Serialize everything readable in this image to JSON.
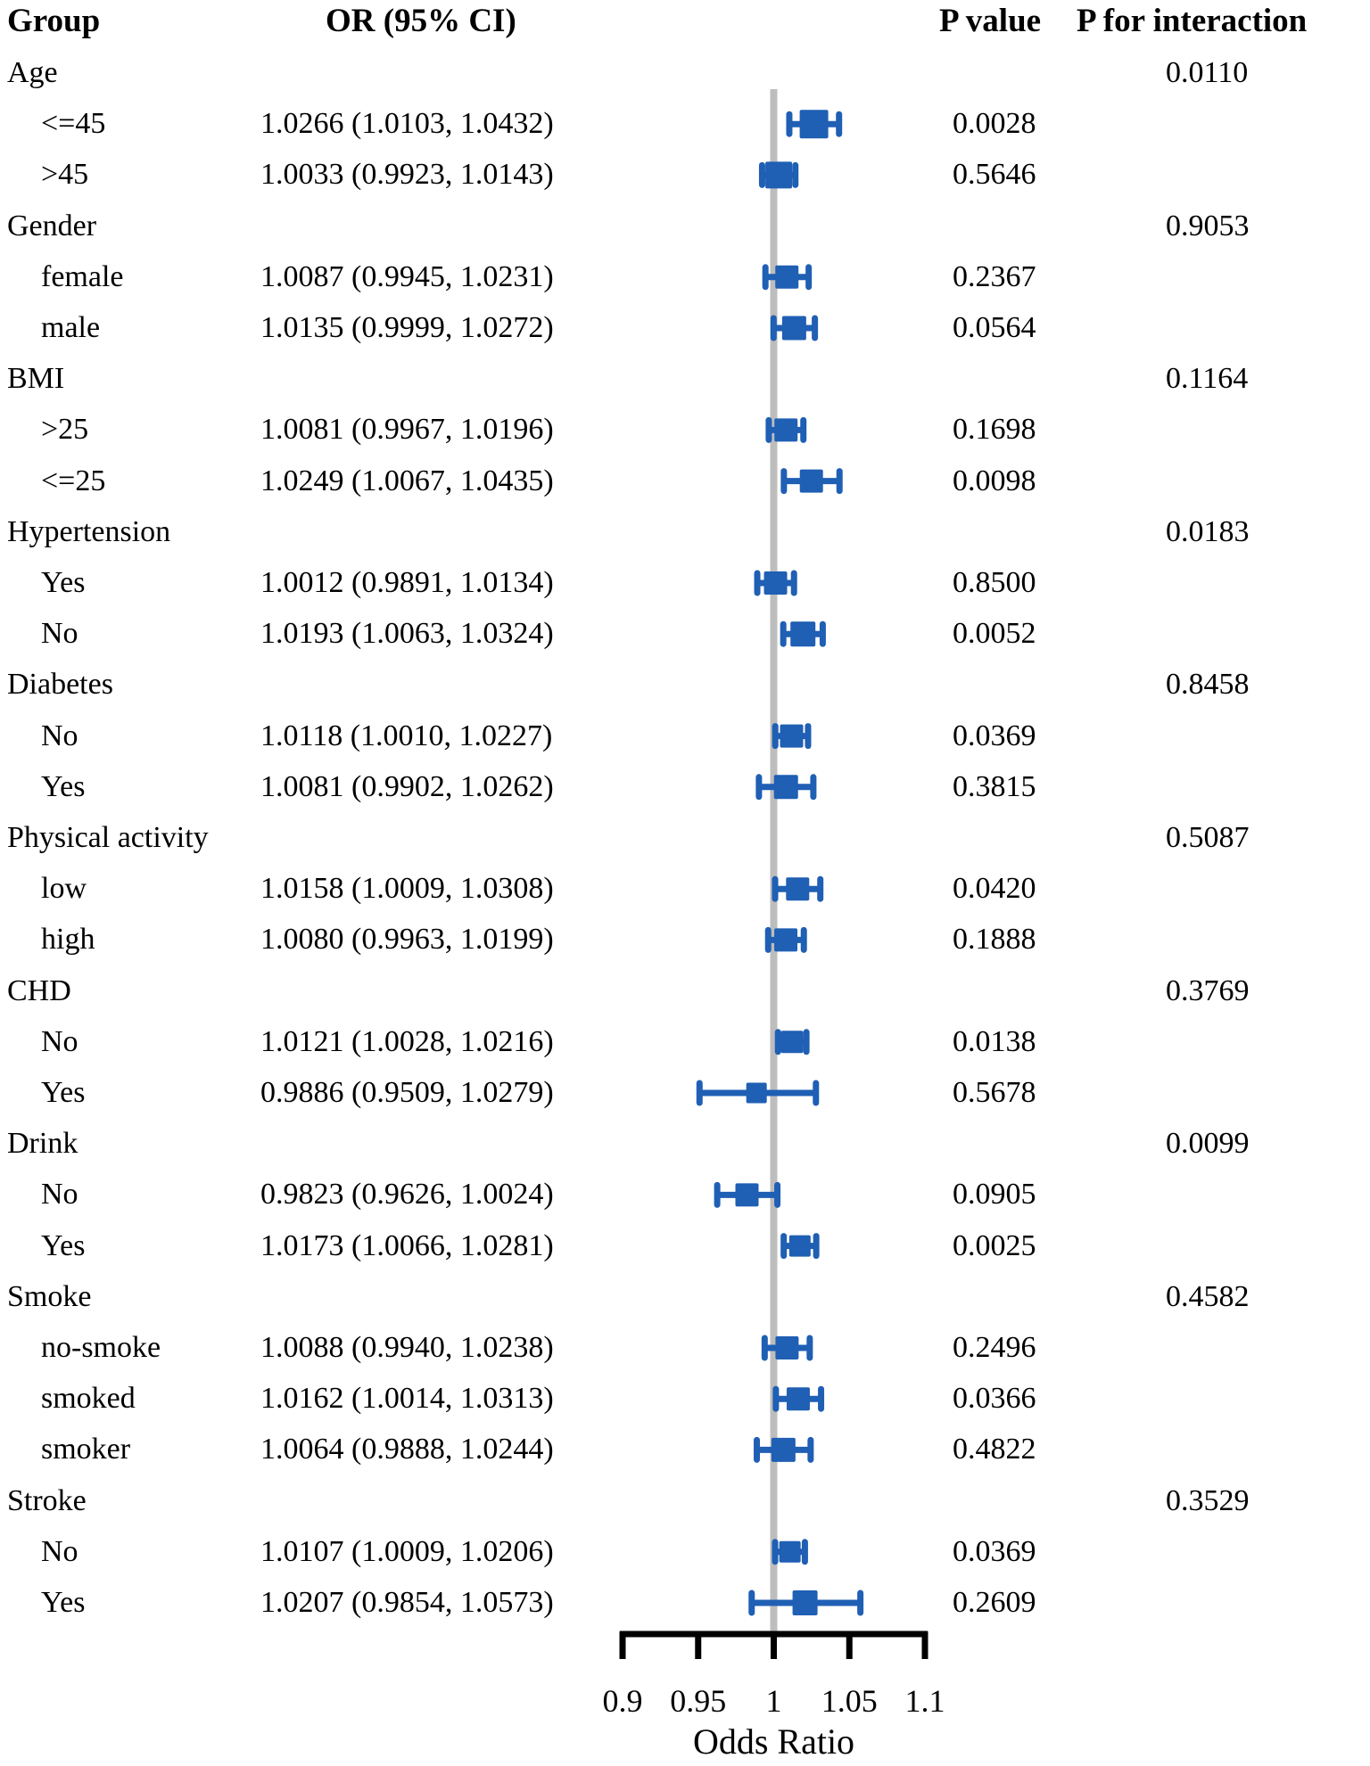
{
  "chart_data": {
    "type": "scatter",
    "subtype": "forest-plot",
    "title": "",
    "xlabel": "Odds Ratio",
    "x_ticks": [
      0.9,
      0.95,
      1,
      1.05,
      1.1
    ],
    "x_tick_labels": [
      "0.9",
      "0.95",
      "1",
      "1.05",
      "1.1"
    ],
    "xlim": [
      0.9,
      1.1
    ],
    "reference_line": 1,
    "grid": false,
    "legend": "none",
    "marker_color": "#1F5FB4",
    "reference_line_color": "#BDBDBD",
    "axis_color": "#000000",
    "columns": {
      "group": "Group",
      "or_ci": "OR (95% CI)",
      "p_value": "P value",
      "p_interaction": "P for interaction"
    },
    "rows": [
      {
        "type": "group",
        "label": "Age",
        "p_interaction": "0.0110"
      },
      {
        "type": "item",
        "label": "<=45",
        "or_ci": "1.0266 (1.0103, 1.0432)",
        "or": 1.0266,
        "lo": 1.0103,
        "hi": 1.0432,
        "p": "0.0028",
        "size": 32
      },
      {
        "type": "item",
        "label": ">45",
        "or_ci": "1.0033 (0.9923, 1.0143)",
        "or": 1.0033,
        "lo": 0.9923,
        "hi": 1.0143,
        "p": "0.5646",
        "size": 30
      },
      {
        "type": "group",
        "label": "Gender",
        "p_interaction": "0.9053"
      },
      {
        "type": "item",
        "label": "female",
        "or_ci": "1.0087 (0.9945, 1.0231)",
        "or": 1.0087,
        "lo": 0.9945,
        "hi": 1.0231,
        "p": "0.2367",
        "size": 26
      },
      {
        "type": "item",
        "label": "male",
        "or_ci": "1.0135 (0.9999, 1.0272)",
        "or": 1.0135,
        "lo": 0.9999,
        "hi": 1.0272,
        "p": "0.0564",
        "size": 27
      },
      {
        "type": "group",
        "label": "BMI",
        "p_interaction": "0.1164"
      },
      {
        "type": "item",
        "label": ">25",
        "or_ci": "1.0081 (0.9967, 1.0196)",
        "or": 1.0081,
        "lo": 0.9967,
        "hi": 1.0196,
        "p": "0.1698",
        "size": 26
      },
      {
        "type": "item",
        "label": "<=25",
        "or_ci": "1.0249 (1.0067, 1.0435)",
        "or": 1.0249,
        "lo": 1.0067,
        "hi": 1.0435,
        "p": "0.0098",
        "size": 26
      },
      {
        "type": "group",
        "label": "Hypertension",
        "p_interaction": "0.0183"
      },
      {
        "type": "item",
        "label": "Yes",
        "or_ci": "1.0012 (0.9891, 1.0134)",
        "or": 1.0012,
        "lo": 0.9891,
        "hi": 1.0134,
        "p": "0.8500",
        "size": 26
      },
      {
        "type": "item",
        "label": "No",
        "or_ci": "1.0193 (1.0063, 1.0324)",
        "or": 1.0193,
        "lo": 1.0063,
        "hi": 1.0324,
        "p": "0.0052",
        "size": 28
      },
      {
        "type": "group",
        "label": "Diabetes",
        "p_interaction": "0.8458"
      },
      {
        "type": "item",
        "label": "No",
        "or_ci": "1.0118 (1.0010, 1.0227)",
        "or": 1.0118,
        "lo": 1.001,
        "hi": 1.0227,
        "p": "0.0369",
        "size": 26
      },
      {
        "type": "item",
        "label": "Yes",
        "or_ci": "1.0081 (0.9902, 1.0262)",
        "or": 1.0081,
        "lo": 0.9902,
        "hi": 1.0262,
        "p": "0.3815",
        "size": 27
      },
      {
        "type": "group",
        "label": "Physical activity",
        "p_interaction": "0.5087"
      },
      {
        "type": "item",
        "label": "low",
        "or_ci": "1.0158 (1.0009, 1.0308)",
        "or": 1.0158,
        "lo": 1.0009,
        "hi": 1.0308,
        "p": "0.0420",
        "size": 26
      },
      {
        "type": "item",
        "label": "high",
        "or_ci": "1.0080 (0.9963, 1.0199)",
        "or": 1.008,
        "lo": 0.9963,
        "hi": 1.0199,
        "p": "0.1888",
        "size": 26
      },
      {
        "type": "group",
        "label": "CHD",
        "p_interaction": "0.3769"
      },
      {
        "type": "item",
        "label": "No",
        "or_ci": "1.0121 (1.0028, 1.0216)",
        "or": 1.0121,
        "lo": 1.0028,
        "hi": 1.0216,
        "p": "0.0138",
        "size": 25
      },
      {
        "type": "item",
        "label": "Yes",
        "or_ci": "0.9886 (0.9509, 1.0279)",
        "or": 0.9886,
        "lo": 0.9509,
        "hi": 1.0279,
        "p": "0.5678",
        "size": 23
      },
      {
        "type": "group",
        "label": "Drink",
        "p_interaction": "0.0099"
      },
      {
        "type": "item",
        "label": "No",
        "or_ci": "0.9823 (0.9626, 1.0024)",
        "or": 0.9823,
        "lo": 0.9626,
        "hi": 1.0024,
        "p": "0.0905",
        "size": 26
      },
      {
        "type": "item",
        "label": "Yes",
        "or_ci": "1.0173 (1.0066, 1.0281)",
        "or": 1.0173,
        "lo": 1.0066,
        "hi": 1.0281,
        "p": "0.0025",
        "size": 24
      },
      {
        "type": "group",
        "label": "Smoke",
        "p_interaction": "0.4582"
      },
      {
        "type": "item",
        "label": "no-smoke",
        "or_ci": "1.0088 (0.9940, 1.0238)",
        "or": 1.0088,
        "lo": 0.994,
        "hi": 1.0238,
        "p": "0.2496",
        "size": 26
      },
      {
        "type": "item",
        "label": "smoked",
        "or_ci": "1.0162 (1.0014, 1.0313)",
        "or": 1.0162,
        "lo": 1.0014,
        "hi": 1.0313,
        "p": "0.0366",
        "size": 26
      },
      {
        "type": "item",
        "label": "smoker",
        "or_ci": "1.0064 (0.9888, 1.0244)",
        "or": 1.0064,
        "lo": 0.9888,
        "hi": 1.0244,
        "p": "0.4822",
        "size": 27
      },
      {
        "type": "group",
        "label": "Stroke",
        "p_interaction": "0.3529"
      },
      {
        "type": "item",
        "label": "No",
        "or_ci": "1.0107 (1.0009, 1.0206)",
        "or": 1.0107,
        "lo": 1.0009,
        "hi": 1.0206,
        "p": "0.0369",
        "size": 24
      },
      {
        "type": "item",
        "label": "Yes",
        "or_ci": "1.0207 (0.9854, 1.0573)",
        "or": 1.0207,
        "lo": 0.9854,
        "hi": 1.0573,
        "p": "0.2609",
        "size": 28
      }
    ]
  }
}
